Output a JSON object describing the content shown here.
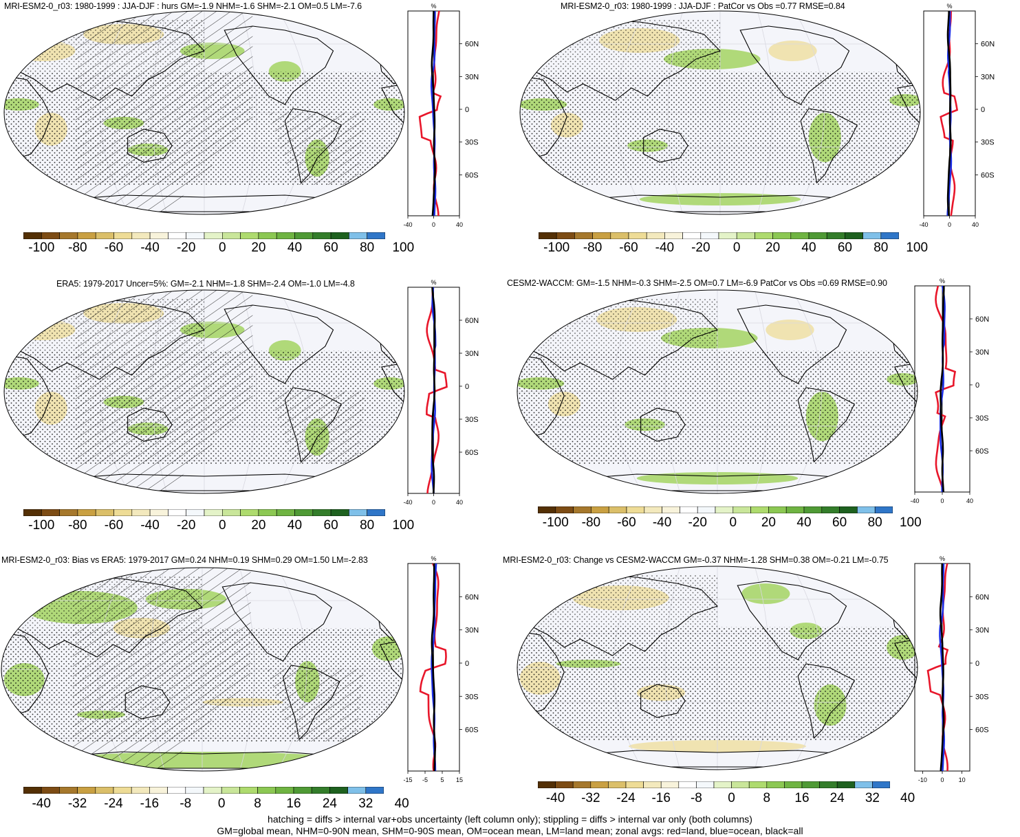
{
  "panels": [
    {
      "id": "p1",
      "title": "MRI-ESM2-0_r03: 1980-1999 : JJA-DJF : hurs GM=-1.9 NHM=-1.6 SHM=-2.1 OM=0.5 LM=-7.6",
      "hatching": true,
      "colorbar_labels": [
        "-100",
        "-80",
        "-60",
        "-40",
        "-20",
        "0",
        "20",
        "40",
        "60",
        "80",
        "100"
      ],
      "zonal": {
        "unit": "%",
        "lat_labels": [
          "60N",
          "30N",
          "0",
          "30S",
          "60S"
        ],
        "x_labels": [
          "-40",
          "0",
          "40"
        ],
        "xlim": [
          -40,
          40
        ]
      }
    },
    {
      "id": "p2",
      "title": "MRI-ESM2-0_r03: 1980-1999 : JJA-DJF : PatCor vs Obs =0.77 RMSE=0.84",
      "hatching": false,
      "colorbar_labels": [
        "-100",
        "-80",
        "-60",
        "-40",
        "-20",
        "0",
        "20",
        "40",
        "60",
        "80",
        "100"
      ],
      "zonal": {
        "unit": "%",
        "lat_labels": [
          "60N",
          "30N",
          "0",
          "30S",
          "60S"
        ],
        "x_labels": [
          "-40",
          "0",
          "40"
        ],
        "xlim": [
          -40,
          40
        ]
      }
    },
    {
      "id": "p3",
      "title": "ERA5: 1979-2017 Uncer=5%: GM=-2.1 NHM=-1.8 SHM=-2.4 OM=-1.0 LM=-4.8",
      "hatching": true,
      "colorbar_labels": [
        "-100",
        "-80",
        "-60",
        "-40",
        "-20",
        "0",
        "20",
        "40",
        "60",
        "80",
        "100"
      ],
      "zonal": {
        "unit": "%",
        "lat_labels": [
          "60N",
          "30N",
          "0",
          "30S",
          "60S"
        ],
        "x_labels": [
          "-40",
          "0",
          "40"
        ],
        "xlim": [
          -40,
          40
        ]
      }
    },
    {
      "id": "p4",
      "title": "CESM2-WACCM: GM=-1.5 NHM=-0.3 SHM=-2.5 OM=0.7 LM=-6.9 PatCor vs Obs =0.69 RMSE=0.90",
      "hatching": false,
      "colorbar_labels": [
        "-100",
        "-80",
        "-60",
        "-40",
        "-20",
        "0",
        "20",
        "40",
        "60",
        "80",
        "100"
      ],
      "zonal": {
        "unit": "%",
        "lat_labels": [
          "60N",
          "30N",
          "0",
          "30S",
          "60S"
        ],
        "x_labels": [
          "-40",
          "0",
          "40"
        ],
        "xlim": [
          -40,
          40
        ]
      }
    },
    {
      "id": "p5",
      "title": "MRI-ESM2-0_r03: Bias vs ERA5: 1979-2017 GM=0.24 NHM=0.19 SHM=0.29 OM=1.50 LM=-2.83",
      "hatching": true,
      "colorbar_labels": [
        "-40",
        "-32",
        "-24",
        "-16",
        "-8",
        "0",
        "8",
        "16",
        "24",
        "32",
        "40"
      ],
      "zonal": {
        "unit": "%",
        "lat_labels": [
          "60N",
          "30N",
          "0",
          "30S",
          "60S"
        ],
        "x_labels": [
          "-15",
          "-5",
          "5",
          "15"
        ],
        "xlim": [
          -15,
          15
        ]
      }
    },
    {
      "id": "p6",
      "title": "MRI-ESM2-0_r03: Change vs CESM2-WACCM GM=-0.37 NHM=-1.28 SHM=0.38 OM=-0.21 LM=-0.75",
      "hatching": false,
      "colorbar_labels": [
        "-40",
        "-32",
        "-24",
        "-16",
        "-8",
        "0",
        "8",
        "16",
        "24",
        "32",
        "40"
      ],
      "zonal": {
        "unit": "%",
        "lat_labels": [
          "60N",
          "30N",
          "0",
          "30S",
          "60S"
        ],
        "x_labels": [
          "-10",
          "0",
          "10"
        ],
        "xlim": [
          -14,
          14
        ]
      }
    }
  ],
  "colorbar_colors": [
    "#543005",
    "#7d4c14",
    "#a6782c",
    "#c9a042",
    "#dbbf69",
    "#eedc96",
    "#f3e9bd",
    "#f8f3db",
    "#ffffff",
    "#f4f8fb",
    "#e4f3c8",
    "#c9e69a",
    "#aedb6e",
    "#8cc853",
    "#6fb442",
    "#4f9a35",
    "#337d2a",
    "#1e611f",
    "#7fc0e9",
    "#2f76c8"
  ],
  "colors": {
    "land": "#e8162a",
    "ocean": "#1a2ee6",
    "all": "#000000",
    "map_bg": "#f4f5fa",
    "wet": "#a8d66a",
    "dry": "#efe1a8"
  },
  "footer": {
    "line1": "hatching = diffs > internal var+obs uncertainty (left column only); stippling = diffs > internal var only (both columns)",
    "line2": "GM=global mean, NHM=0-90N mean, SHM=0-90S mean, OM=ocean mean, LM=land mean; zonal avgs: red=land, blue=ocean, black=all"
  }
}
